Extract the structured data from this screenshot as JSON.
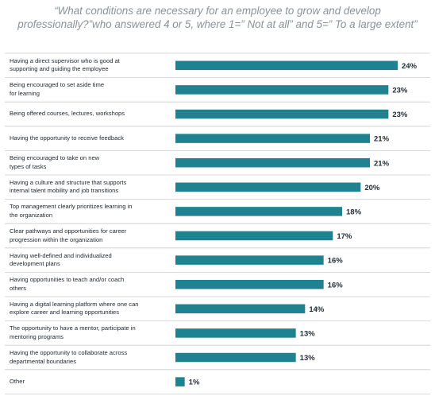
{
  "title_lines": [
    "“What conditions are necessary for an employee to grow and develop",
    "professionally?”who answered 4 or 5, where 1=” Not at all” and 5=” To a large extent”"
  ],
  "colors": {
    "bar": "#1f8290",
    "divider": "#c9ced3",
    "label": "#222a33",
    "title": "#8a9299"
  },
  "chart_data": {
    "type": "bar",
    "orientation": "horizontal",
    "title": "“What conditions are necessary for an employee to grow and develop professionally?”who answered 4 or 5, where 1=” Not at all” and 5=” To a large extent”",
    "value_suffix": "%",
    "categories": [
      [
        "Having a direct supervisor who is good at",
        "supporting and guiding the employee"
      ],
      [
        "Being encouraged to set aside time",
        "for learning"
      ],
      [
        "Being offered courses, lectures, workshops"
      ],
      [
        "Having the opportunity to receive feedback"
      ],
      [
        "Being encouraged to take on new",
        "types of tasks"
      ],
      [
        "Having a culture and structure that supports",
        "internal talent mobility and job transitions"
      ],
      [
        "Top management clearly prioritizes learning in",
        "the organization"
      ],
      [
        "Clear pathways and opportunities for career",
        "progression within the organization"
      ],
      [
        "Having well-defined and individualized",
        "development plans"
      ],
      [
        "Having opportunities to teach and/or coach",
        "others"
      ],
      [
        "Having a digital learning platform where one can",
        "explore career and learning opportunities"
      ],
      [
        "The opportunity to have a mentor, participate in",
        "mentoring programs"
      ],
      [
        "Having the opportunity to collaborate across",
        "departmental boundaries"
      ],
      [
        "Other"
      ]
    ],
    "values": [
      24,
      23,
      23,
      21,
      21,
      20,
      18,
      17,
      16,
      16,
      14,
      13,
      13,
      1
    ],
    "value_labels": [
      "24%",
      "23%",
      "23%",
      "21%",
      "21%",
      "20%",
      "18%",
      "17%",
      "16%",
      "16%",
      "14%",
      "13%",
      "13%",
      "1%"
    ],
    "xlim": [
      0,
      24
    ],
    "grid": false,
    "legend": "none"
  }
}
